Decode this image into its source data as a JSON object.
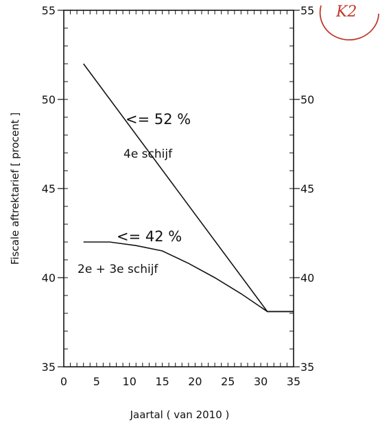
{
  "chart_data": {
    "type": "line",
    "title": "",
    "xlabel": "Jaartal ( van 2010 )",
    "ylabel": "Fiscale aftrektarief [ procent ]",
    "xlim": [
      0,
      35
    ],
    "ylim": [
      35,
      55
    ],
    "x_ticks": [
      "0",
      "5",
      "10",
      "15",
      "20",
      "25",
      "30",
      "35"
    ],
    "y_ticks": [
      "35",
      "40",
      "45",
      "50",
      "55"
    ],
    "y2_ticks": [
      "35",
      "40",
      "45",
      "50",
      "55"
    ],
    "grid": false,
    "legend": "none",
    "line_color": "#111111",
    "series": [
      {
        "label_rate": "<= 52 %",
        "label_bracket": "4e schijf",
        "x": [
          3,
          31,
          35
        ],
        "y": [
          52,
          38.1,
          38.1
        ]
      },
      {
        "label_rate": "<= 42 %",
        "label_bracket": "2e + 3e schijf",
        "x": [
          3,
          7,
          11,
          15,
          19,
          23,
          27,
          31,
          35
        ],
        "y": [
          42,
          42,
          41.8,
          41.5,
          40.8,
          40,
          39.1,
          38.1,
          38.1
        ]
      }
    ],
    "corner_mark": "K2",
    "corner_mark_color": "#c0392b"
  }
}
